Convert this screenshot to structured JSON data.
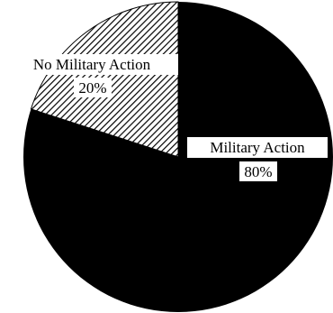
{
  "chart_data": {
    "type": "pie",
    "slices": [
      {
        "label": "Military Action",
        "value_label": "80%",
        "value": 80,
        "fill": "solid"
      },
      {
        "label": "No Military Action",
        "value_label": "20%",
        "value": 20,
        "fill": "hatched"
      }
    ],
    "title": "",
    "legend": "none",
    "colors": {
      "solid": "#000000",
      "hatch": "#000000",
      "background": "#ffffff"
    }
  }
}
